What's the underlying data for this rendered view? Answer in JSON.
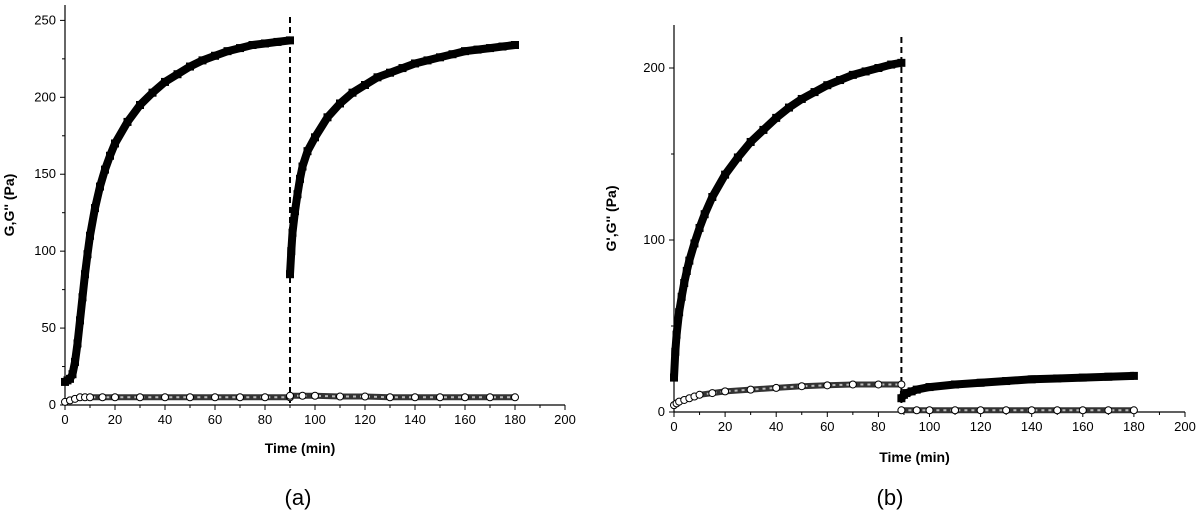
{
  "chart_data": [
    {
      "type": "scatter",
      "panel_label": "(a)",
      "xlabel": "Time (min)",
      "ylabel": "G,G'' (Pa)",
      "xlim": [
        0,
        200
      ],
      "ylim": [
        0,
        260
      ],
      "xticks": [
        0,
        20,
        40,
        60,
        80,
        100,
        120,
        140,
        160,
        180,
        200
      ],
      "yticks": [
        0,
        50,
        100,
        150,
        200,
        250
      ],
      "divider_x": 90,
      "series": [
        {
          "marker": "filled-square",
          "segments": [
            {
              "x": [
                0,
                1,
                2,
                3,
                4,
                5,
                6,
                7,
                8,
                9,
                10,
                12,
                14,
                16,
                18,
                20,
                25,
                30,
                35,
                40,
                45,
                50,
                55,
                60,
                65,
                70,
                75,
                80,
                85,
                90
              ],
              "y": [
                15,
                16,
                17,
                20,
                28,
                40,
                55,
                70,
                85,
                98,
                110,
                128,
                142,
                153,
                162,
                170,
                184,
                195,
                203,
                210,
                215,
                220,
                224,
                227,
                230,
                232,
                234,
                235,
                236,
                237
              ]
            },
            {
              "x": [
                90,
                90.5,
                91,
                92,
                93,
                94,
                95,
                97,
                100,
                105,
                110,
                115,
                120,
                125,
                130,
                135,
                140,
                145,
                150,
                155,
                160,
                165,
                170,
                175,
                180
              ],
              "y": [
                85,
                100,
                112,
                126,
                137,
                147,
                155,
                165,
                174,
                187,
                196,
                203,
                208,
                213,
                216,
                219,
                222,
                224,
                226,
                228,
                230,
                231,
                232,
                233,
                234
              ]
            }
          ]
        },
        {
          "marker": "open-circle",
          "segments": [
            {
              "x": [
                0,
                2,
                4,
                6,
                8,
                10,
                15,
                20,
                30,
                40,
                50,
                60,
                70,
                80,
                90
              ],
              "y": [
                2,
                3,
                4,
                5,
                5,
                5,
                5,
                5,
                5,
                5,
                5,
                5,
                5,
                5,
                5
              ]
            },
            {
              "x": [
                90,
                95,
                100,
                110,
                120,
                130,
                140,
                150,
                160,
                170,
                180
              ],
              "y": [
                6,
                6,
                6,
                5.5,
                5.5,
                5,
                5,
                5,
                5,
                5,
                5
              ]
            }
          ]
        }
      ]
    },
    {
      "type": "scatter",
      "panel_label": "(b)",
      "xlabel": "Time (min)",
      "ylabel": "G',G'' (Pa)",
      "xlim": [
        0,
        200
      ],
      "ylim": [
        0,
        225
      ],
      "xticks": [
        0,
        20,
        40,
        60,
        80,
        100,
        120,
        140,
        160,
        180,
        200
      ],
      "yticks": [
        0,
        100,
        200
      ],
      "divider_x": 89,
      "series": [
        {
          "marker": "filled-square",
          "segments": [
            {
              "x": [
                0,
                0.5,
                1,
                2,
                3,
                4,
                5,
                6,
                8,
                10,
                12,
                15,
                20,
                25,
                30,
                35,
                40,
                45,
                50,
                55,
                60,
                65,
                70,
                75,
                80,
                85,
                89
              ],
              "y": [
                20,
                35,
                45,
                58,
                67,
                75,
                82,
                88,
                98,
                107,
                115,
                125,
                138,
                148,
                157,
                164,
                171,
                177,
                182,
                186,
                190,
                193,
                196,
                198,
                200,
                202,
                203
              ]
            },
            {
              "x": [
                89,
                90,
                91,
                93,
                95,
                100,
                110,
                120,
                130,
                140,
                150,
                160,
                170,
                180
              ],
              "y": [
                8,
                10,
                11,
                12,
                13,
                14.5,
                16,
                17,
                18,
                19,
                19.5,
                20,
                20.5,
                21
              ]
            }
          ]
        },
        {
          "marker": "open-circle",
          "segments": [
            {
              "x": [
                0,
                1,
                2,
                4,
                6,
                8,
                10,
                15,
                20,
                30,
                40,
                50,
                60,
                70,
                80,
                89
              ],
              "y": [
                4,
                5,
                6,
                7,
                8,
                9,
                10,
                11,
                12,
                13,
                14,
                15,
                15.5,
                16,
                16,
                16
              ]
            },
            {
              "x": [
                89,
                95,
                100,
                110,
                120,
                130,
                140,
                150,
                160,
                170,
                180
              ],
              "y": [
                1,
                1,
                1,
                1,
                1,
                1,
                1,
                1,
                1,
                1,
                1
              ]
            }
          ]
        }
      ]
    }
  ]
}
